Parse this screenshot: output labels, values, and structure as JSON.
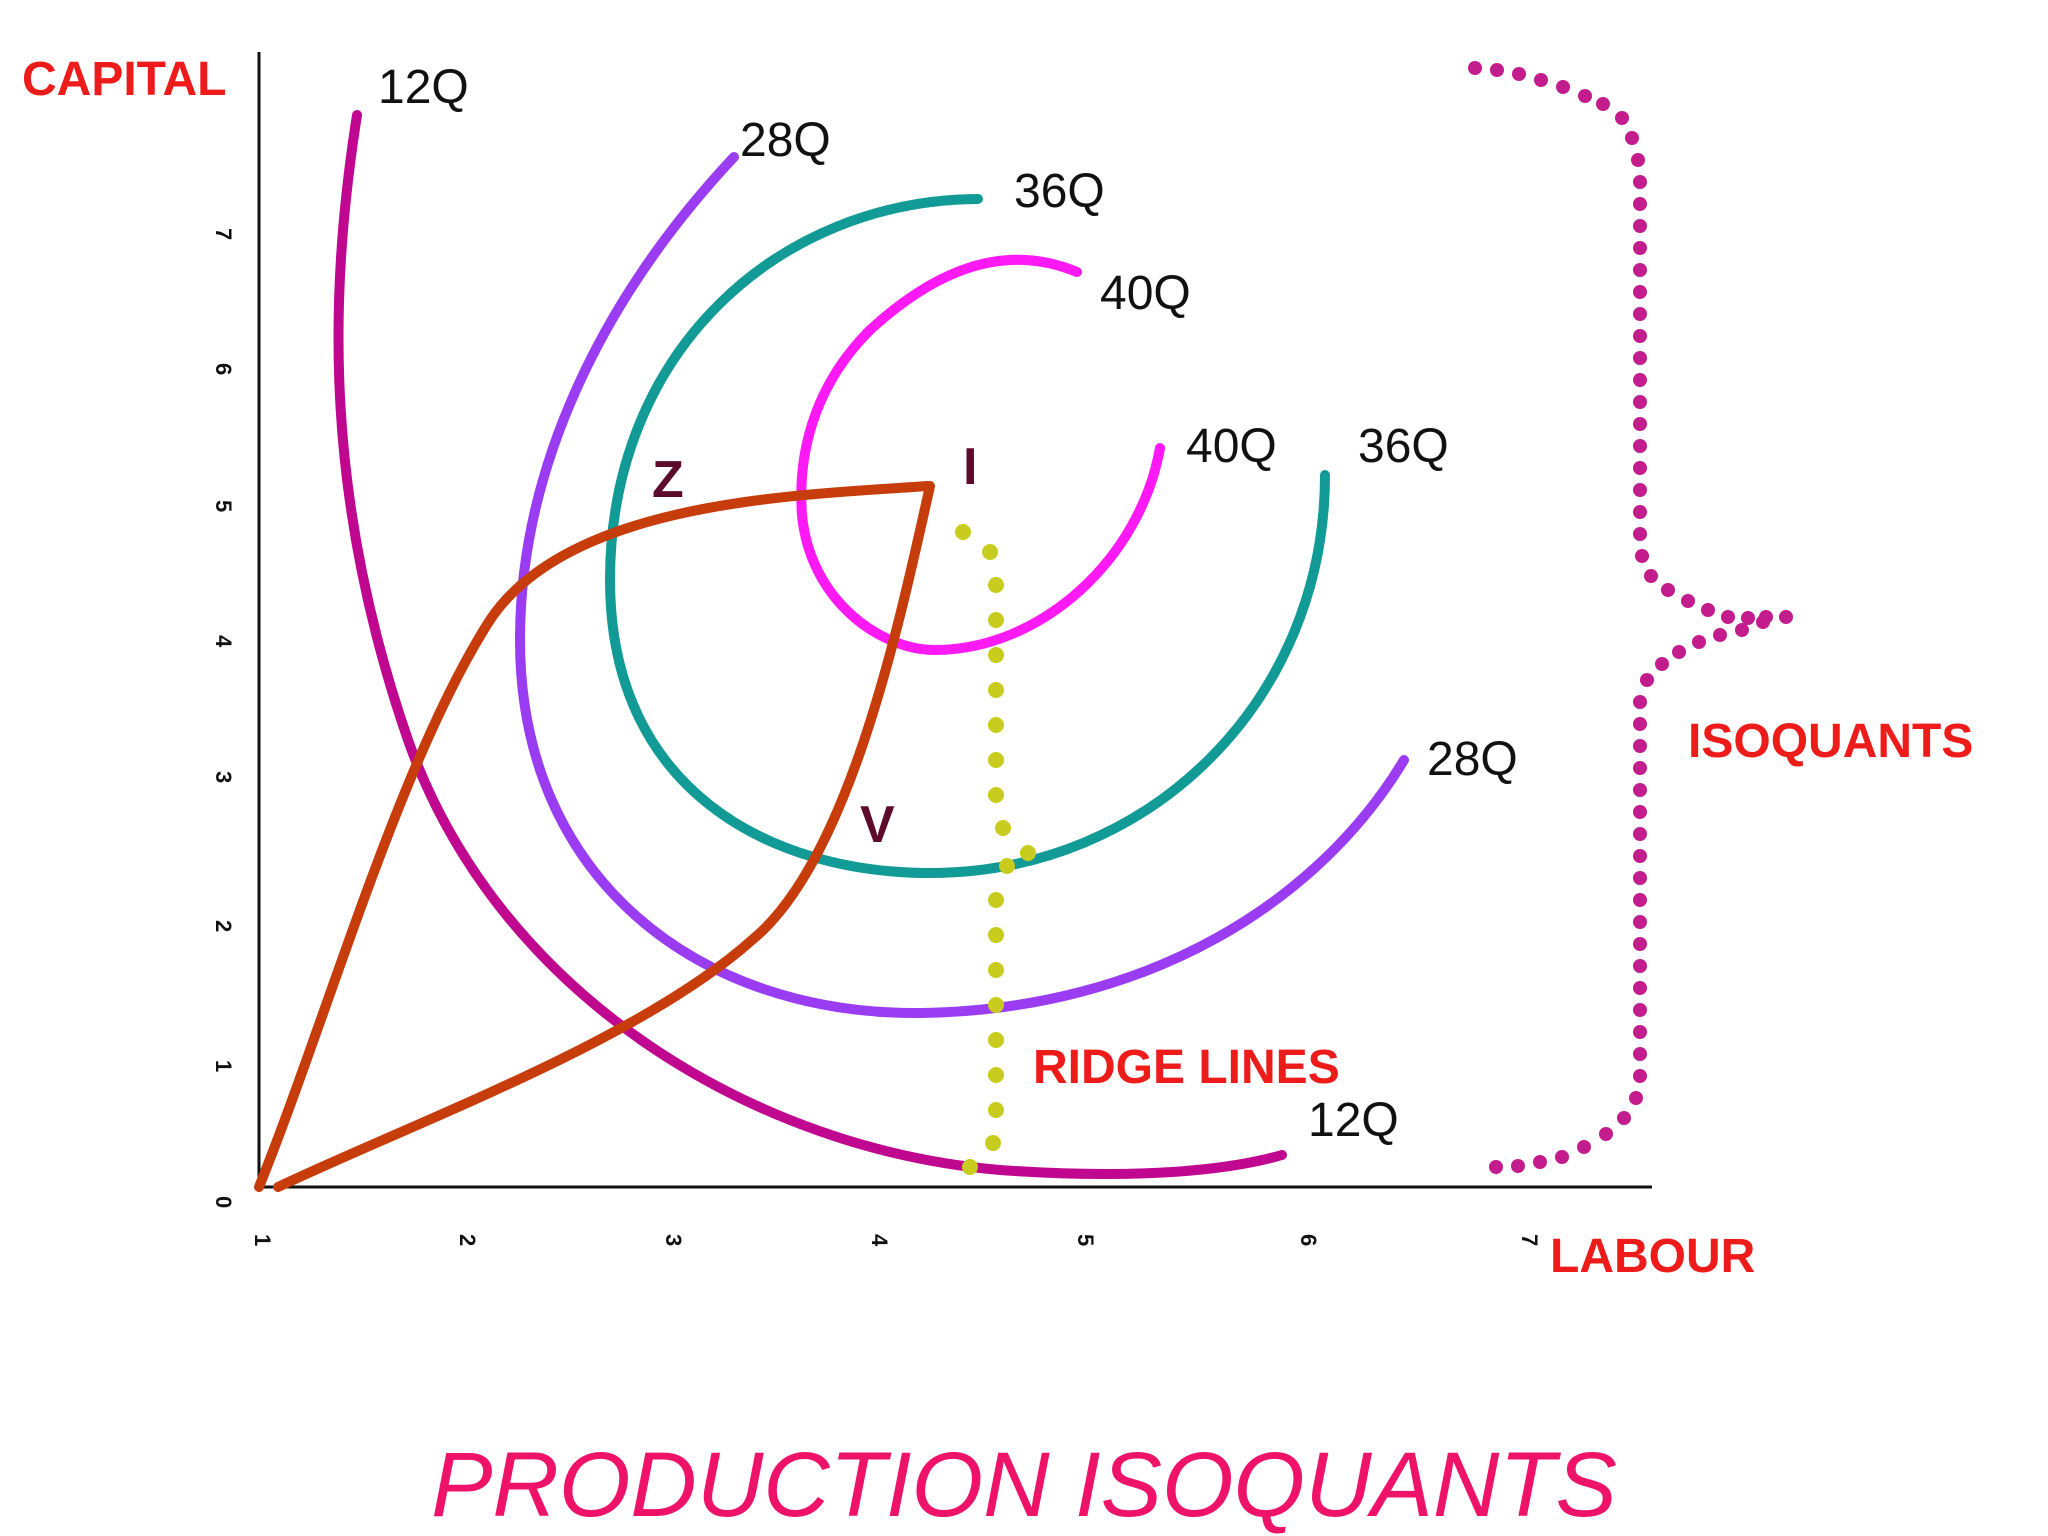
{
  "diagram": {
    "title": "PRODUCTION ISOQUANTS",
    "y_axis_label": "CAPITAL",
    "x_axis_label": "LABOUR",
    "x_ticks": [
      "1",
      "2",
      "3",
      "4",
      "5",
      "6",
      "7"
    ],
    "y_ticks": [
      "0",
      "1",
      "2",
      "3",
      "4",
      "5",
      "6",
      "7"
    ],
    "isoquant_labels": {
      "q12_top": "12Q",
      "q12_bottom": "12Q",
      "q28_top": "28Q",
      "q28_bottom": "28Q",
      "q36_top": "36Q",
      "q36_bottom": "36Q",
      "q40_top": "40Q",
      "q40_bottom": "40Q"
    },
    "points": {
      "z": "Z",
      "i": "I",
      "v": "V"
    },
    "ridge_lines_label": "RIDGE LINES",
    "isoquants_label": "ISOQUANTS",
    "colors": {
      "q12": "#c0078f",
      "q28": "#9a3cf2",
      "q36": "#119a96",
      "q40": "#ff19f5",
      "ridge": "#c73c0b",
      "ridge_dots": "#c8cc1e",
      "brace_dots": "#c31c8c",
      "red_text": "#ee1b1b",
      "title": "#ee1268",
      "point_text": "#5c0b2c"
    }
  }
}
